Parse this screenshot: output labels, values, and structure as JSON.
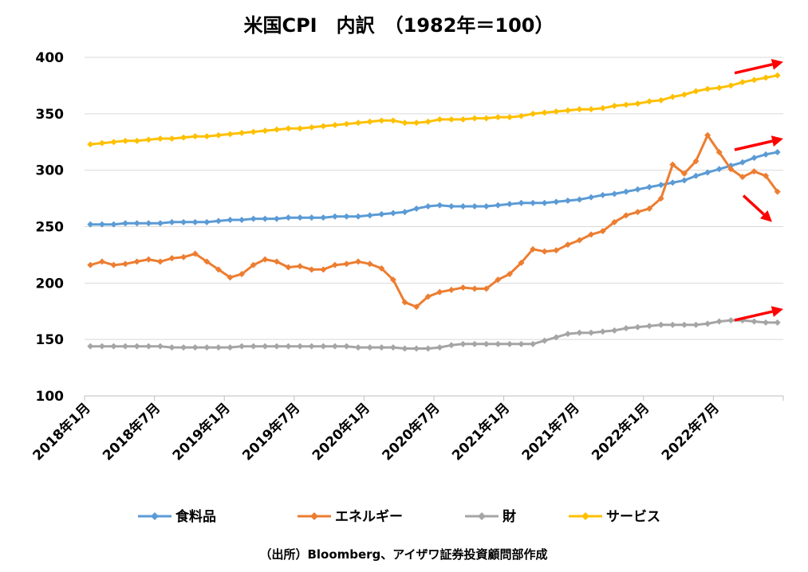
{
  "chart_data": {
    "type": "line",
    "title": "米国CPI　内訳　（1982年＝100）",
    "source": "（出所）Bloomberg、アイザワ証券投資顧問部作成",
    "ylim": [
      100,
      400
    ],
    "yticks": [
      "100",
      "150",
      "200",
      "250",
      "300",
      "350",
      "400"
    ],
    "x_start": "2018-01",
    "n_points": 60,
    "xticks": [
      {
        "label": "2018年1月",
        "index": 0
      },
      {
        "label": "2018年7月",
        "index": 6
      },
      {
        "label": "2019年1月",
        "index": 12
      },
      {
        "label": "2019年7月",
        "index": 18
      },
      {
        "label": "2020年1月",
        "index": 24
      },
      {
        "label": "2020年7月",
        "index": 30
      },
      {
        "label": "2021年1月",
        "index": 36
      },
      {
        "label": "2021年7月",
        "index": 42
      },
      {
        "label": "2022年1月",
        "index": 48
      },
      {
        "label": "2022年7月",
        "index": 54
      }
    ],
    "grid": true,
    "legend_position": "bottom",
    "series": [
      {
        "name": "食料品",
        "color": "#5B9BD5",
        "trend": "up",
        "values": [
          252,
          252,
          252,
          253,
          253,
          253,
          253,
          254,
          254,
          254,
          254,
          255,
          256,
          256,
          257,
          257,
          257,
          258,
          258,
          258,
          258,
          259,
          259,
          259,
          260,
          261,
          262,
          263,
          266,
          268,
          269,
          268,
          268,
          268,
          268,
          269,
          270,
          271,
          271,
          271,
          272,
          273,
          274,
          276,
          278,
          279,
          281,
          283,
          285,
          287,
          289,
          291,
          295,
          298,
          301,
          304,
          307,
          311,
          314,
          316
        ]
      },
      {
        "name": "エネルギー",
        "color": "#ED7D31",
        "trend": "down",
        "values": [
          216,
          219,
          216,
          217,
          219,
          221,
          219,
          222,
          223,
          226,
          219,
          212,
          205,
          208,
          216,
          221,
          219,
          214,
          215,
          212,
          212,
          216,
          217,
          219,
          217,
          213,
          203,
          183,
          179,
          188,
          192,
          194,
          196,
          195,
          195,
          203,
          208,
          218,
          230,
          228,
          229,
          234,
          238,
          243,
          246,
          254,
          260,
          263,
          266,
          275,
          305,
          297,
          308,
          331,
          316,
          301,
          294,
          299,
          295,
          281
        ]
      },
      {
        "name": "財",
        "color": "#A5A5A5",
        "trend": "up",
        "values": [
          144,
          144,
          144,
          144,
          144,
          144,
          144,
          143,
          143,
          143,
          143,
          143,
          143,
          144,
          144,
          144,
          144,
          144,
          144,
          144,
          144,
          144,
          144,
          143,
          143,
          143,
          143,
          142,
          142,
          142,
          143,
          145,
          146,
          146,
          146,
          146,
          146,
          146,
          146,
          149,
          152,
          155,
          156,
          156,
          157,
          158,
          160,
          161,
          162,
          163,
          163,
          163,
          163,
          164,
          166,
          167,
          167,
          166,
          165,
          165
        ]
      },
      {
        "name": "サービス",
        "color": "#FFC000",
        "trend": "up",
        "values": [
          323,
          324,
          325,
          326,
          326,
          327,
          328,
          328,
          329,
          330,
          330,
          331,
          332,
          333,
          334,
          335,
          336,
          337,
          337,
          338,
          339,
          340,
          341,
          342,
          343,
          344,
          344,
          342,
          342,
          343,
          345,
          345,
          345,
          346,
          346,
          347,
          347,
          348,
          350,
          351,
          352,
          353,
          354,
          354,
          355,
          357,
          358,
          359,
          361,
          362,
          365,
          367,
          370,
          372,
          373,
          375,
          378,
          380,
          382,
          384
        ]
      }
    ],
    "legend": [
      "食料品",
      "エネルギー",
      "財",
      "サービス"
    ]
  }
}
